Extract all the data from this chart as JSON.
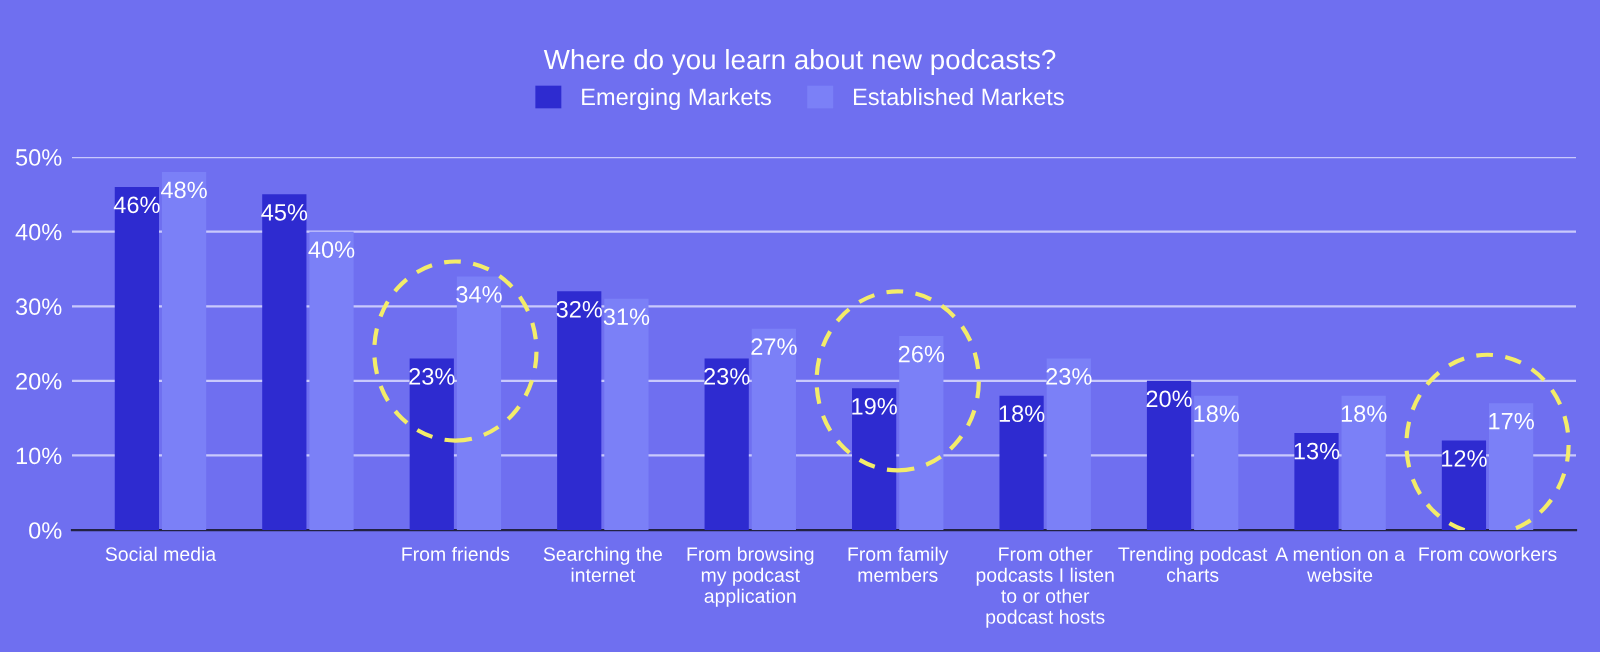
{
  "chart_data": {
    "type": "bar",
    "title": "Where do you learn about new podcasts?",
    "categories": [
      "Social media",
      null,
      "From friends",
      "Searching the\ninternet",
      "From browsing\nmy podcast\napplication",
      "From family\nmembers",
      "From other\npodcasts I listen\nto or other\npodcast hosts",
      "Trending podcast\ncharts",
      "A mention on a\nwebsite",
      "From coworkers"
    ],
    "series": [
      {
        "name": "Emerging Markets",
        "color": "#2e2bd0",
        "values": [
          46,
          45,
          23,
          32,
          23,
          19,
          18,
          20,
          13,
          12
        ],
        "value_labels": [
          "46%",
          "45%",
          "23%",
          "32%",
          "23%",
          "19%",
          "18%",
          "20%",
          "13%",
          "12%"
        ]
      },
      {
        "name": "Established Markets",
        "color": "#7b80f7",
        "values": [
          48,
          40,
          34,
          31,
          27,
          26,
          23,
          18,
          18,
          17
        ],
        "value_labels": [
          "48%",
          "40%",
          "34%",
          "31%",
          "27%",
          "26%",
          "23%",
          "18%",
          "18%",
          "17%"
        ]
      }
    ],
    "ylim": [
      0,
      50
    ],
    "yticks": [
      {
        "value": 0,
        "label": "0%"
      },
      {
        "value": 10,
        "label": "10%"
      },
      {
        "value": 20,
        "label": "20%"
      },
      {
        "value": 30,
        "label": "30%"
      },
      {
        "value": 40,
        "label": "40%"
      },
      {
        "value": 50,
        "label": "50%"
      }
    ],
    "grid": "y",
    "legend": "top"
  }
}
